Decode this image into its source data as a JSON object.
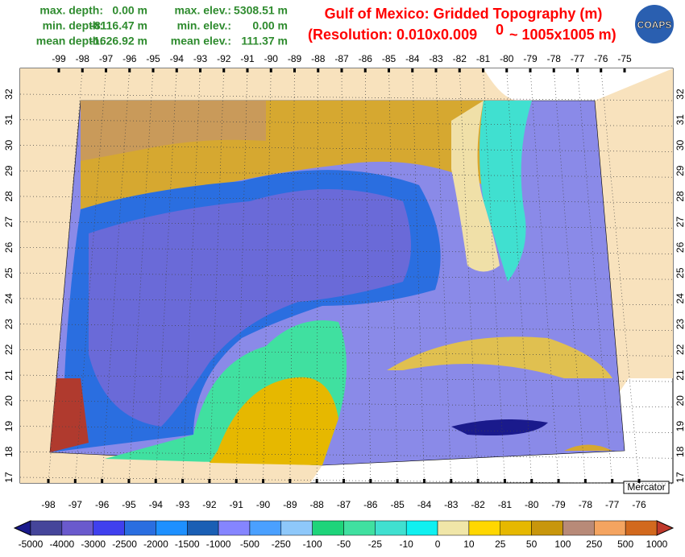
{
  "stats": {
    "left": [
      {
        "label": "max. depth:",
        "value": "0.00 m"
      },
      {
        "label": "min. depth:",
        "value": "-8116.47 m"
      },
      {
        "label": "mean depth:",
        "value": "-1626.92 m"
      }
    ],
    "right": [
      {
        "label": "max. elev.:",
        "value": "5308.51 m"
      },
      {
        "label": "min. elev.:",
        "value": "0.00 m"
      },
      {
        "label": "mean elev.:",
        "value": "111.37 m"
      }
    ]
  },
  "title": {
    "line1": "Gulf of Mexico: Gridded Topography (m)",
    "line2_start": "(Resolution: 0.010x0.009",
    "line2_sup": "0",
    "line2_end": "~ 1005x1005 m)"
  },
  "logo": "COAPS",
  "projection": "Mercator",
  "map": {
    "top_lon": [
      -99,
      -98,
      -97,
      -96,
      -95,
      -94,
      -93,
      -92,
      -91,
      -90,
      -89,
      -88,
      -87,
      -86,
      -85,
      -84,
      -83,
      -82,
      -81,
      -80,
      -79,
      -78,
      -77,
      -76,
      -75
    ],
    "bottom_lon": [
      -98,
      -97,
      -96,
      -95,
      -94,
      -93,
      -92,
      -91,
      -90,
      -89,
      -88,
      -87,
      -86,
      -85,
      -84,
      -83,
      -82,
      -81,
      -80,
      -79,
      -78,
      -77,
      -76
    ],
    "lat": [
      32,
      31,
      30,
      29,
      28,
      27,
      26,
      25,
      24,
      23,
      22,
      21,
      20,
      19,
      18,
      17
    ]
  },
  "colorbar": {
    "labels": [
      -5000,
      -4000,
      -3000,
      -2500,
      -2000,
      -1500,
      -1000,
      -500,
      -250,
      -100,
      -50,
      -25,
      -10,
      0,
      10,
      25,
      50,
      100,
      250,
      500,
      1000
    ],
    "colors": [
      "#45459a",
      "#6a5acd",
      "#4040ee",
      "#2a6ee0",
      "#1e90ff",
      "#1a5fb4",
      "#8585ff",
      "#4aa0ff",
      "#8ec8fa",
      "#1ed47a",
      "#40e0a0",
      "#40e0d0",
      "#10f0f0",
      "#f0e6a8",
      "#ffd700",
      "#e6b800",
      "#c8960c",
      "#b88a78",
      "#f4a460",
      "#d2691e"
    ],
    "under": "#1a1a8c",
    "over": "#c0392b"
  }
}
